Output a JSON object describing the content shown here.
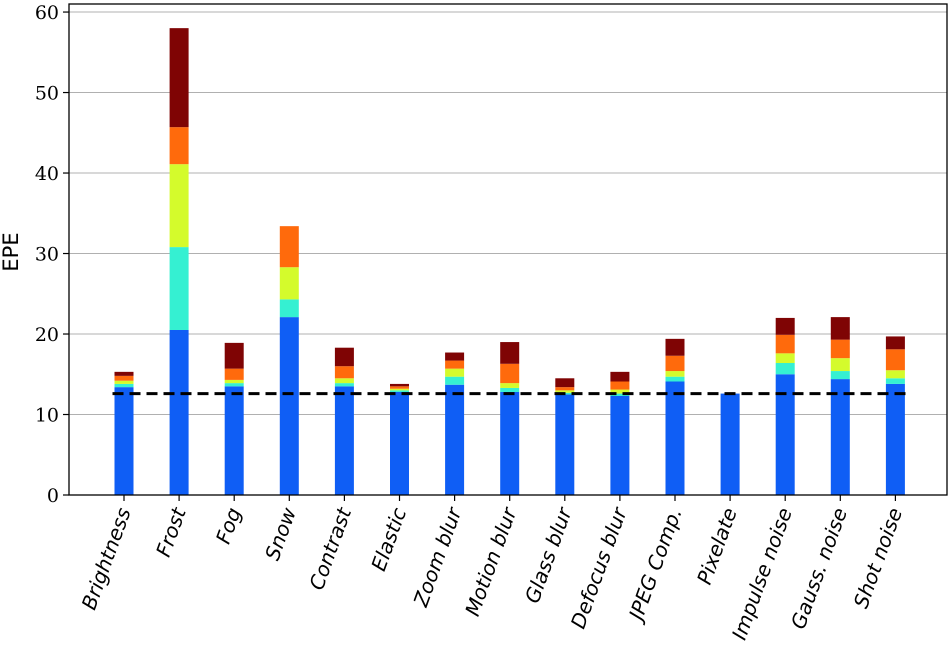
{
  "chart_data": {
    "type": "bar",
    "stacked": true,
    "title": "",
    "xlabel": "",
    "ylabel": "EPE",
    "ylim": [
      0,
      61
    ],
    "yticks": [
      0,
      10,
      20,
      30,
      40,
      50,
      60
    ],
    "grid": "horizontal",
    "legend": "none",
    "categories": [
      "Brightness",
      "Frost",
      "Fog",
      "Snow",
      "Contrast",
      "Elastic",
      "Zoom blur",
      "Motion blur",
      "Glass blur",
      "Defocus blur",
      "JPEG Comp.",
      "Pixelate",
      "Impulse noise",
      "Gauss. noise",
      "Shot noise"
    ],
    "segment_colors": [
      "#0f5ef5",
      "#35f0d2",
      "#d4fb2c",
      "#ff6a0c",
      "#7f0404"
    ],
    "cumulative_levels": [
      [
        13.4,
        13.8,
        14.2,
        14.8,
        15.3
      ],
      [
        20.5,
        30.8,
        41.1,
        45.7,
        58.0
      ],
      [
        13.5,
        13.9,
        14.3,
        15.7,
        18.9
      ],
      [
        22.1,
        24.3,
        28.3,
        33.4,
        33.4
      ],
      [
        13.5,
        13.9,
        14.5,
        16.0,
        18.3
      ],
      [
        12.8,
        13.0,
        13.2,
        13.5,
        13.8
      ],
      [
        13.7,
        14.7,
        15.7,
        16.7,
        17.7
      ],
      [
        12.8,
        13.3,
        13.9,
        16.3,
        19.0
      ],
      [
        12.5,
        12.7,
        13.0,
        13.4,
        14.5
      ],
      [
        12.3,
        12.6,
        13.1,
        14.1,
        15.3
      ],
      [
        14.1,
        14.7,
        15.4,
        17.3,
        19.4
      ],
      [
        12.6,
        12.6,
        12.6,
        12.6,
        12.6
      ],
      [
        15.0,
        16.4,
        17.6,
        19.9,
        22.0
      ],
      [
        14.4,
        15.4,
        17.0,
        19.3,
        22.1
      ],
      [
        13.8,
        14.5,
        15.5,
        18.1,
        19.7
      ]
    ],
    "reference_line": {
      "value": 12.6,
      "style": "dashed",
      "color": "#000000"
    }
  }
}
